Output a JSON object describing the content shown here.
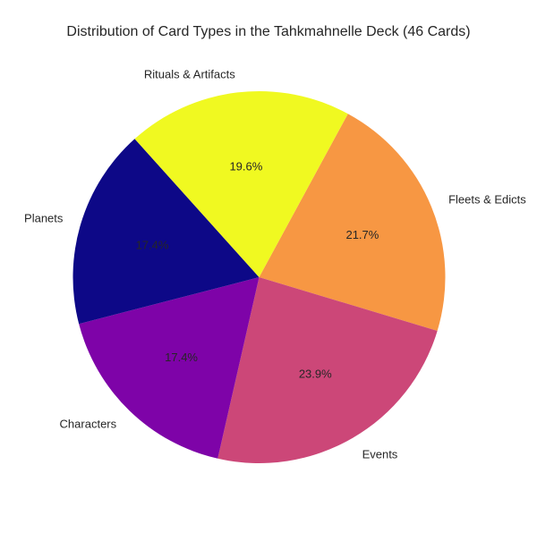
{
  "chart_data": {
    "type": "pie",
    "title": "Distribution of Card Types in the Tahkmahnelle Deck (46 Cards)",
    "slices": [
      {
        "label": "Fleets & Edicts",
        "value": 10,
        "percent_label": "21.7%",
        "color": "#f79743"
      },
      {
        "label": "Events",
        "value": 11,
        "percent_label": "23.9%",
        "color": "#cc4778"
      },
      {
        "label": "Characters",
        "value": 8,
        "percent_label": "17.4%",
        "color": "#7e03a8"
      },
      {
        "label": "Planets",
        "value": 8,
        "percent_label": "17.4%",
        "color": "#0d0887"
      },
      {
        "label": "Rituals & Artifacts",
        "value": 9,
        "percent_label": "19.6%",
        "color": "#f0f921"
      }
    ],
    "legend": "none"
  }
}
